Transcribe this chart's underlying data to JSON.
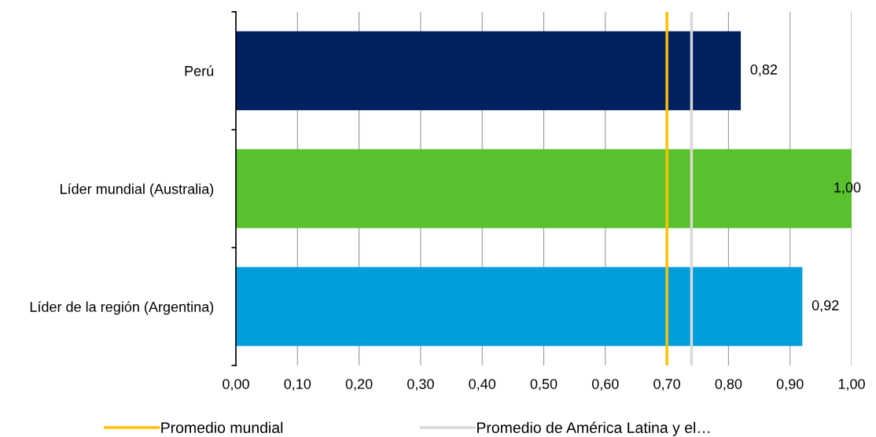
{
  "chart_data": {
    "type": "bar",
    "orientation": "horizontal",
    "categories": [
      "Perú",
      "Líder mundial (Australia)",
      "Líder de la región (Argentina)"
    ],
    "values": [
      0.82,
      1.0,
      0.92
    ],
    "colors": [
      "#002060",
      "#5ac12e",
      "#009fdb"
    ],
    "value_labels": [
      "0,82",
      "1,00",
      "0,92"
    ],
    "xlim": [
      0,
      1
    ],
    "xticks": [
      {
        "value": 0,
        "label": "0,00"
      },
      {
        "value": 0.1,
        "label": "0,10"
      },
      {
        "value": 0.2,
        "label": "0,20"
      },
      {
        "value": 0.3,
        "label": "0,30"
      },
      {
        "value": 0.4,
        "label": "0,40"
      },
      {
        "value": 0.5,
        "label": "0,50"
      },
      {
        "value": 0.6,
        "label": "0,60"
      },
      {
        "value": 0.7,
        "label": "0,70"
      },
      {
        "value": 0.8,
        "label": "0,80"
      },
      {
        "value": 0.9,
        "label": "0,90"
      },
      {
        "value": 1,
        "label": "1,00"
      }
    ],
    "ref_lines": [
      {
        "axis": "x",
        "value": 0.7,
        "label": "Promedio mundial",
        "color": "#ffc000"
      },
      {
        "axis": "x",
        "value": 0.74,
        "label": "Promedio de América Latina y el…",
        "color": "#d9d9d9"
      }
    ],
    "grid": "x",
    "legend": "bottom"
  }
}
